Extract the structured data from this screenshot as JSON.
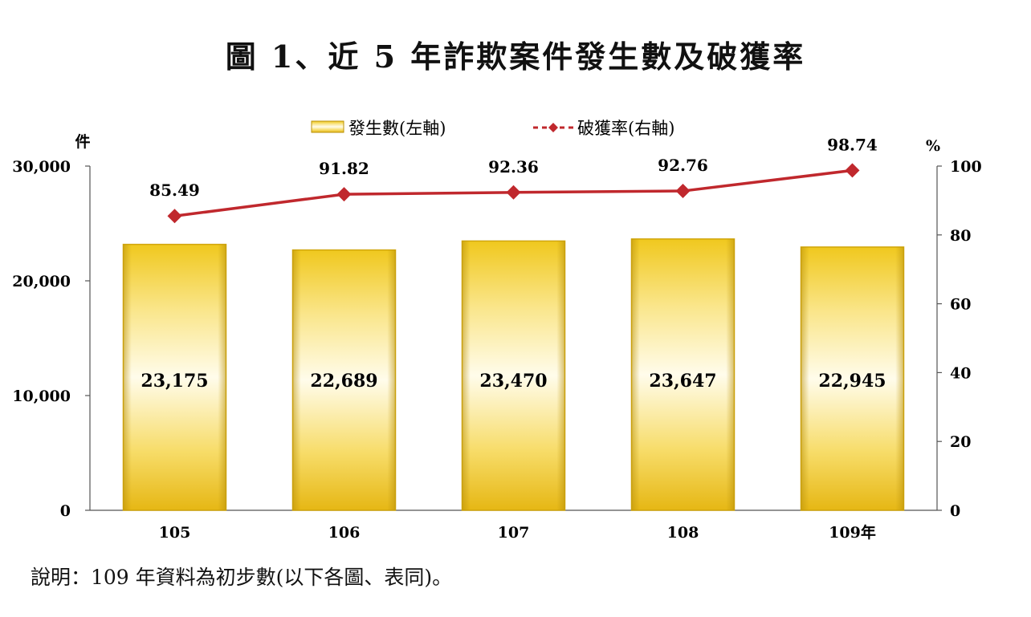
{
  "title": "圖 1、近 5 年詐欺案件發生數及破獲率",
  "note": "說明：109 年資料為初步數(以下各圖、表同)。",
  "chart_data": {
    "type": "bar",
    "categories": [
      "105",
      "106",
      "107",
      "108",
      "109年"
    ],
    "series": [
      {
        "name": "發生數(左軸)",
        "type": "bar",
        "axis": "left",
        "values": [
          23175,
          22689,
          23470,
          23647,
          22945
        ],
        "labels": [
          "23,175",
          "22,689",
          "23,470",
          "23,647",
          "22,945"
        ],
        "color": "#E6BE1E"
      },
      {
        "name": "破獲率(右軸)",
        "type": "line",
        "axis": "right",
        "values": [
          85.49,
          91.82,
          92.36,
          92.76,
          98.74
        ],
        "labels": [
          "85.49",
          "91.82",
          "92.36",
          "92.76",
          "98.74"
        ],
        "color": "#C0282D"
      }
    ],
    "left_axis": {
      "unit": "件",
      "ylim": [
        0,
        30000
      ],
      "ticks": [
        0,
        10000,
        20000,
        30000
      ],
      "tick_labels": [
        "0",
        "10,000",
        "20,000",
        "30,000"
      ]
    },
    "right_axis": {
      "unit": "%",
      "ylim": [
        0,
        100
      ],
      "ticks": [
        0,
        20,
        40,
        60,
        80,
        100
      ],
      "tick_labels": [
        "0",
        "20",
        "40",
        "60",
        "80",
        "100"
      ]
    },
    "grid": false,
    "legend_position": "top-center"
  }
}
